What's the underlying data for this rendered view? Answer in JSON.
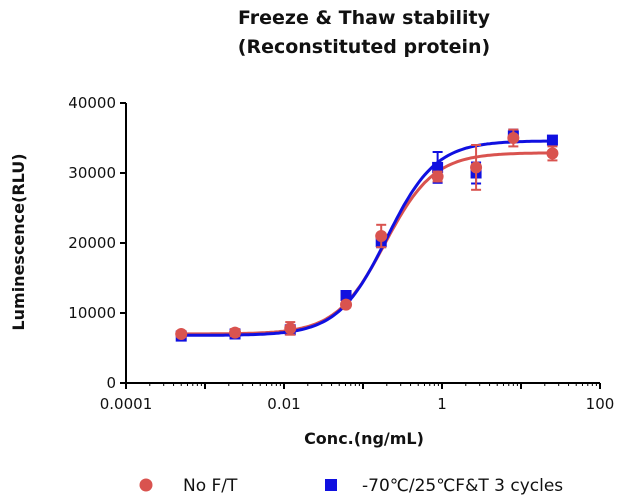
{
  "chart_data": {
    "type": "scatter",
    "title": "Freeze & Thaw stability",
    "subtitle": "(Reconstituted protein)",
    "xlabel": "Conc.(ng/mL)",
    "ylabel": "Luminescence(RLU)",
    "xscale": "log",
    "xlim": [
      0.0001,
      100
    ],
    "ylim": [
      0,
      40000
    ],
    "x_ticks": [
      0.0001,
      0.01,
      1,
      100
    ],
    "x_tick_labels": [
      "0.0001",
      "0.01",
      "1",
      "100"
    ],
    "y_ticks": [
      0,
      10000,
      20000,
      30000,
      40000
    ],
    "y_tick_labels": [
      "0",
      "10000",
      "20000",
      "30000",
      "40000"
    ],
    "legend_position": "bottom",
    "series": [
      {
        "name": "No F/T",
        "marker": "circle",
        "color": "#d9534f",
        "x": [
          0.0005,
          0.0024,
          0.012,
          0.061,
          0.17,
          0.88,
          2.7,
          8.0,
          25.0
        ],
        "y": [
          7000,
          7200,
          7800,
          11200,
          21000,
          29500,
          30800,
          35000,
          32800
        ],
        "err": [
          400,
          500,
          900,
          400,
          1600,
          700,
          3200,
          1200,
          1000
        ],
        "curve": {
          "bottom": 7000,
          "top": 32900,
          "ec50": 0.19,
          "hill": 1.4
        }
      },
      {
        "name": "-70℃/25℃F&T 3 cycles",
        "marker": "square",
        "color": "#1010e0",
        "x": [
          0.0005,
          0.0024,
          0.012,
          0.061,
          0.17,
          0.88,
          2.7,
          8.0,
          25.0
        ],
        "y": [
          6700,
          7000,
          7600,
          12500,
          20200,
          30800,
          30000,
          35300,
          34700
        ],
        "err": [
          400,
          400,
          600,
          400,
          800,
          2200,
          1500,
          900,
          500
        ],
        "curve": {
          "bottom": 6800,
          "top": 34600,
          "ec50": 0.2,
          "hill": 1.4
        }
      }
    ]
  },
  "colors": {
    "axis": "#000000",
    "text": "#111111"
  }
}
